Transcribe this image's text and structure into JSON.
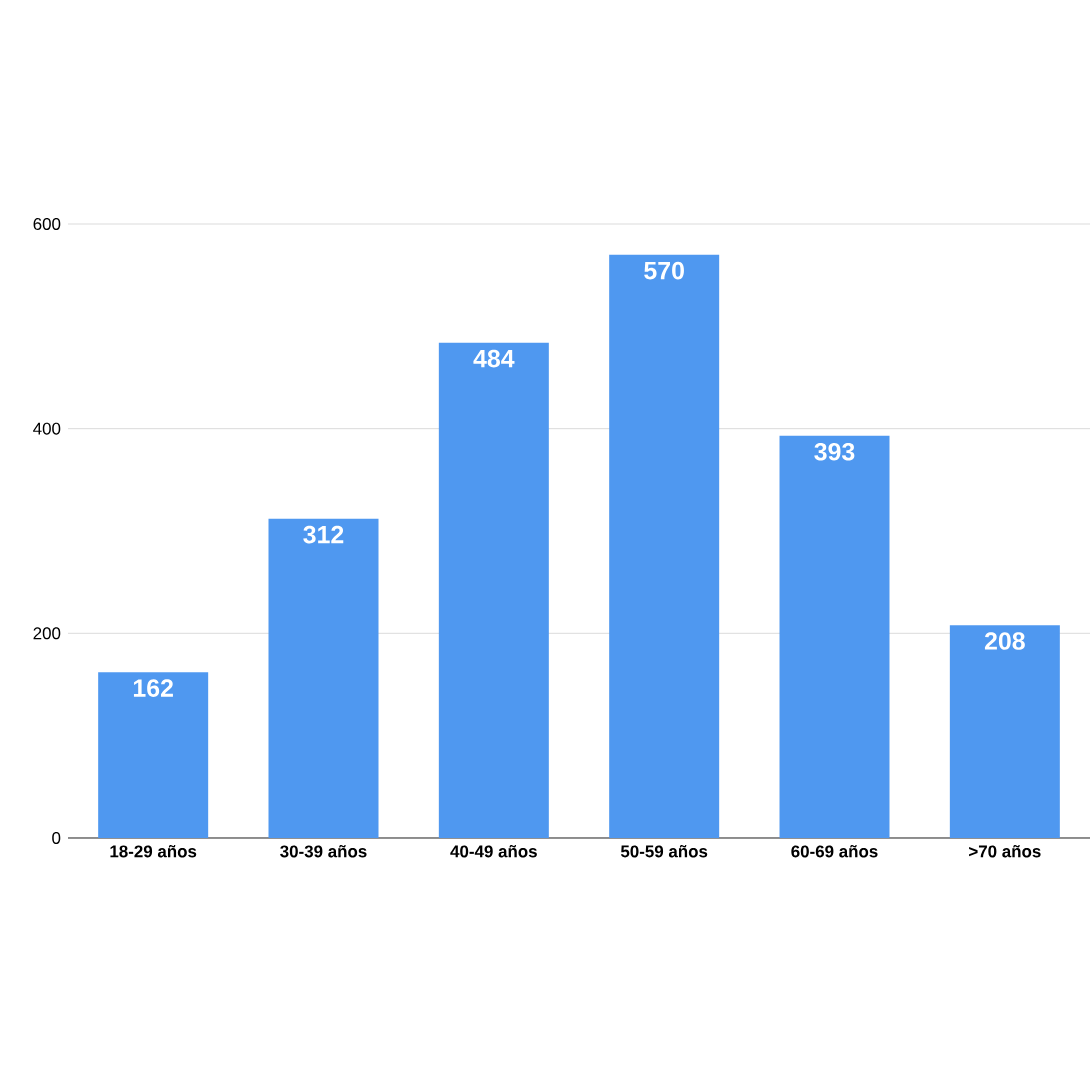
{
  "chart_data": {
    "type": "bar",
    "categories": [
      "18-29 años",
      "30-39 años",
      "40-49 años",
      "50-59 años",
      "60-69 años",
      ">70 años"
    ],
    "values": [
      162,
      312,
      484,
      570,
      393,
      208
    ],
    "color": "#4f98f0",
    "ylim": [
      0,
      600
    ],
    "yticks": [
      0,
      200,
      400,
      600
    ],
    "grid": "y",
    "data_labels": true
  }
}
